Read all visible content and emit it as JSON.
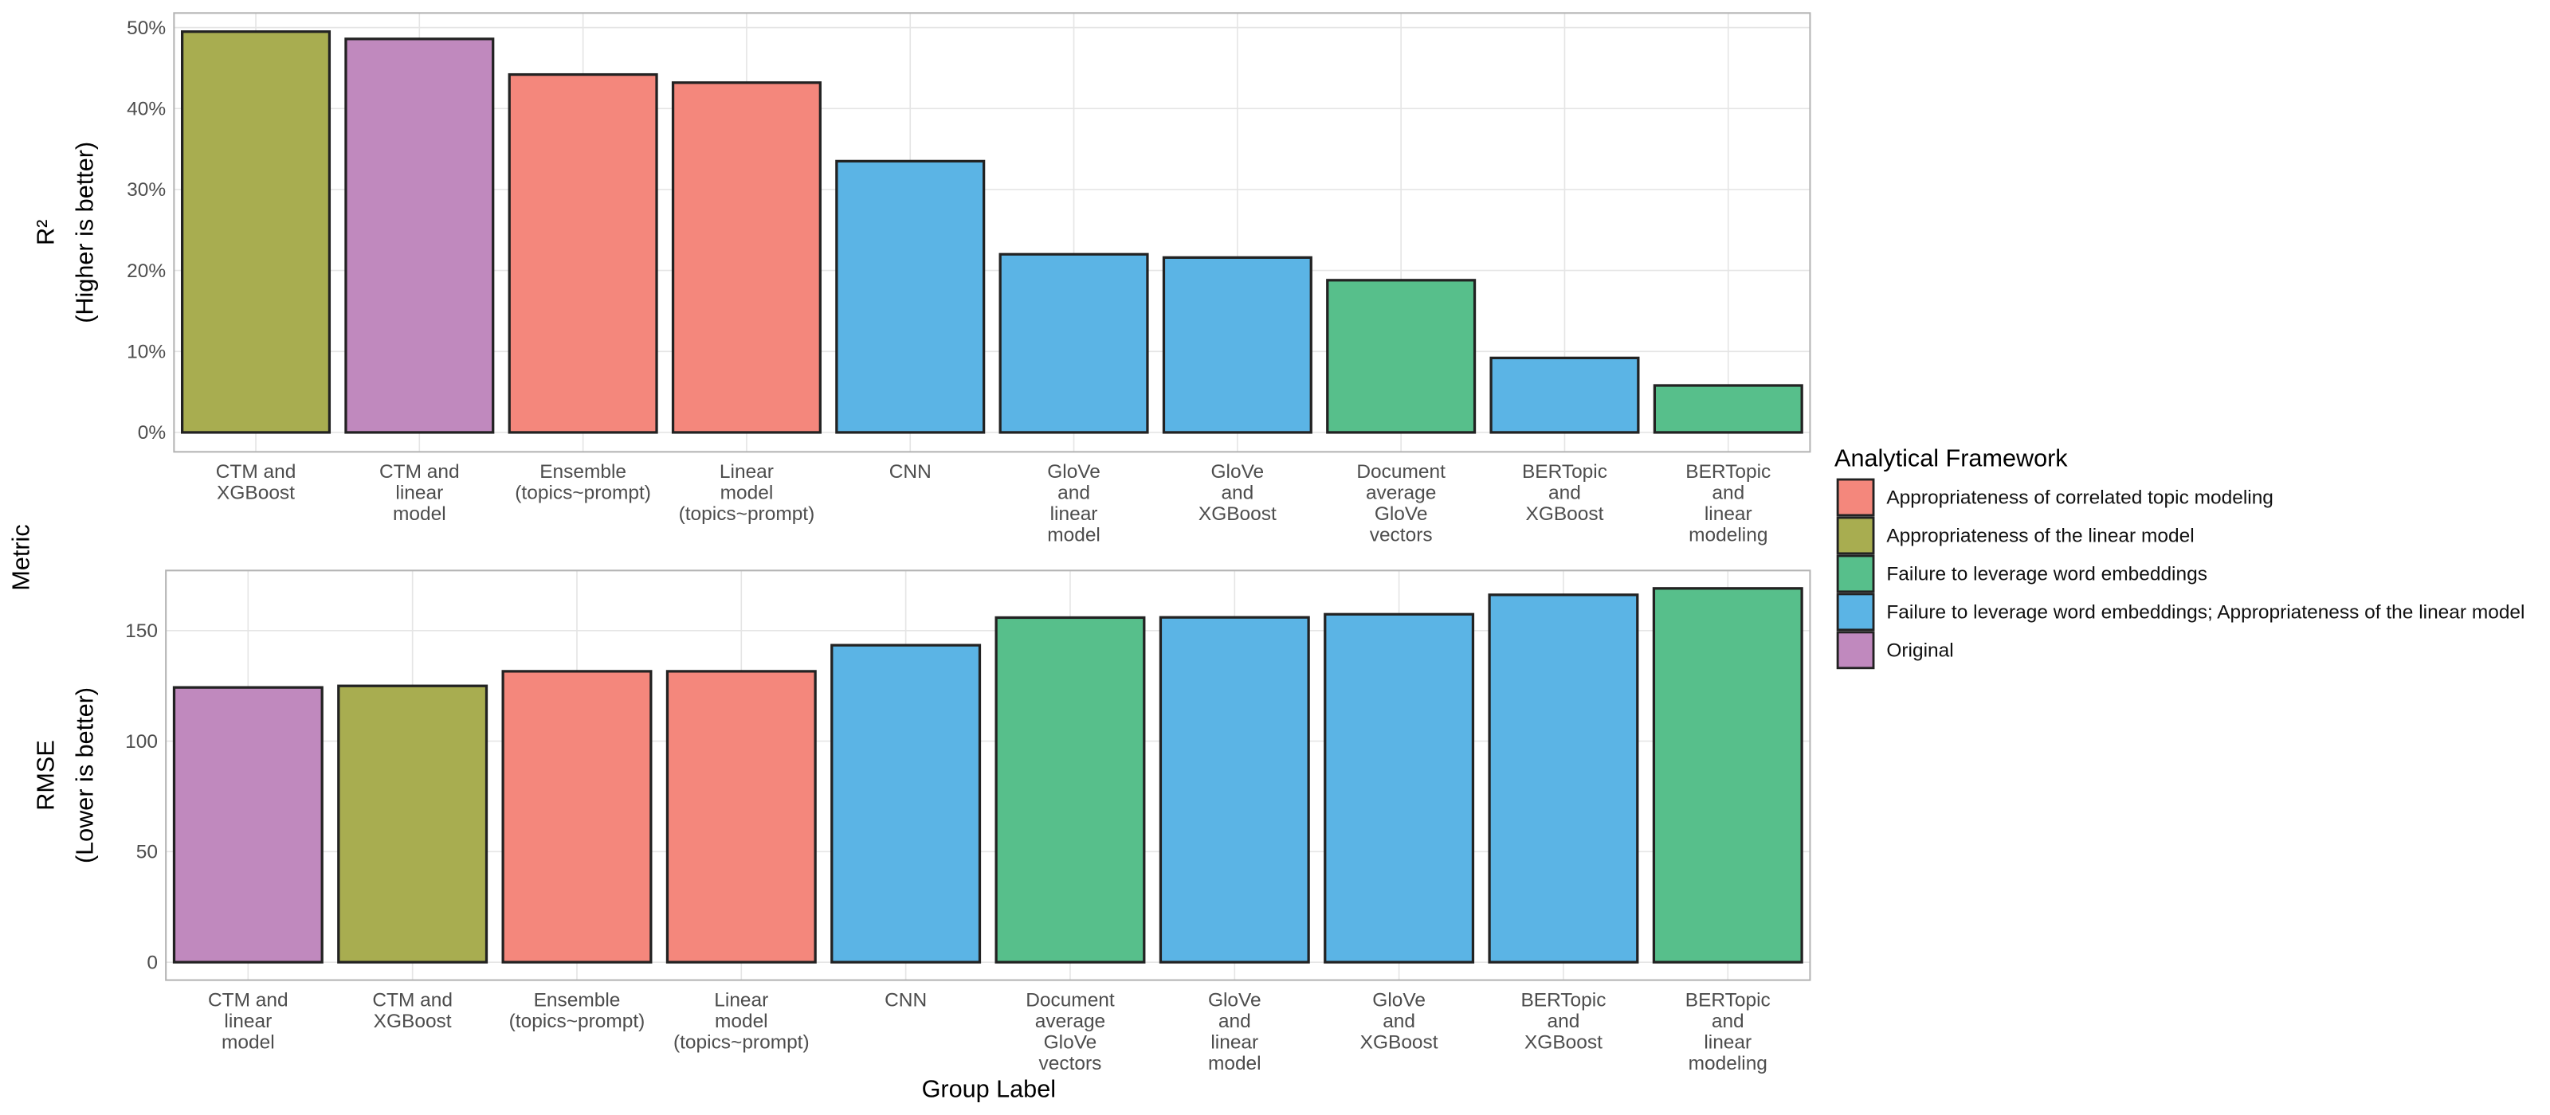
{
  "figure": {
    "ylabel": "Metric",
    "xlabel": "Group Label",
    "legend_title": "Analytical Framework",
    "legend": [
      {
        "name": "Appropriateness of correlated topic modeling",
        "color": "#f4877c"
      },
      {
        "name": "Appropriateness of the linear model",
        "color": "#a8ad50"
      },
      {
        "name": "Failure to leverage word embeddings",
        "color": "#57bf8b"
      },
      {
        "name": "Failure to leverage word embeddings; Appropriateness of the linear model",
        "color": "#5bb4e5"
      },
      {
        "name": "Original",
        "color": "#c089be"
      }
    ]
  },
  "chart_data": [
    {
      "type": "bar",
      "ylabel": "R²\n(Higher is better)",
      "categories": [
        "CTM and\nXGBoost",
        "CTM and\nlinear\nmodel",
        "Ensemble\n(topics~prompt)",
        "Linear\nmodel\n(topics~prompt)",
        "CNN",
        "GloVe\nand\nlinear\nmodel",
        "GloVe\nand\nXGBoost",
        "Document\naverage\nGloVe\nvectors",
        "BERTopic\nand\nXGBoost",
        "BERTopic\nand\nlinear\nmodeling"
      ],
      "values": [
        49.5,
        48.6,
        44.2,
        43.2,
        33.5,
        22.0,
        21.6,
        18.8,
        9.2,
        5.8
      ],
      "colors": [
        "#a8ad50",
        "#c089be",
        "#f4877c",
        "#f4877c",
        "#5bb4e5",
        "#5bb4e5",
        "#5bb4e5",
        "#57bf8b",
        "#5bb4e5",
        "#57bf8b"
      ],
      "ylim": [
        -2.4,
        51.8
      ],
      "yticks": [
        {
          "value": 0,
          "label": "0%"
        },
        {
          "value": 10,
          "label": "10%"
        },
        {
          "value": 20,
          "label": "20%"
        },
        {
          "value": 30,
          "label": "30%"
        },
        {
          "value": 40,
          "label": "40%"
        },
        {
          "value": 50,
          "label": "50%"
        }
      ],
      "grid": true
    },
    {
      "type": "bar",
      "ylabel": "RMSE\n(Lower is better)",
      "categories": [
        "CTM and\nlinear\nmodel",
        "CTM and\nXGBoost",
        "Ensemble\n(topics~prompt)",
        "Linear\nmodel\n(topics~prompt)",
        "CNN",
        "Document\naverage\nGloVe\nvectors",
        "GloVe\nand\nlinear\nmodel",
        "GloVe\nand\nXGBoost",
        "BERTopic\nand\nXGBoost",
        "BERTopic\nand\nlinear\nmodeling"
      ],
      "values": [
        124.3,
        125.0,
        131.6,
        131.6,
        143.4,
        155.9,
        156.0,
        157.4,
        166.2,
        169.1
      ],
      "colors": [
        "#c089be",
        "#a8ad50",
        "#f4877c",
        "#f4877c",
        "#5bb4e5",
        "#57bf8b",
        "#5bb4e5",
        "#5bb4e5",
        "#5bb4e5",
        "#57bf8b"
      ],
      "ylim": [
        -8.1,
        177.2
      ],
      "yticks": [
        0,
        50,
        100,
        150
      ],
      "grid": true
    }
  ]
}
